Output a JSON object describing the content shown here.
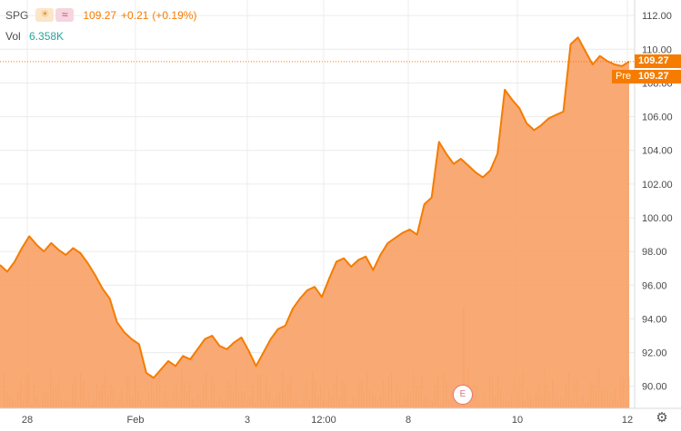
{
  "legend": {
    "symbol": "SPG",
    "price": "109.27",
    "change": "+0.21",
    "change_pct": "(+0.19%)",
    "vol_label": "Vol",
    "vol_value": "6.358K"
  },
  "price_tag": {
    "pre_label": "Pre",
    "value": "109.27",
    "last_value": "109.27"
  },
  "earnings_badge": "E",
  "colors": {
    "line": "#f57c00",
    "area": "#f8a064",
    "grid": "#ececec",
    "pill": "#f57c00"
  },
  "chart_data": {
    "type": "area",
    "title": "",
    "xlabel": "",
    "ylabel": "",
    "ylim": [
      88.8,
      112.6
    ],
    "x_ticks": [
      "28",
      "Feb",
      "3",
      "12:00",
      "8",
      "10",
      "12"
    ],
    "y_ticks": [
      "90.00",
      "92.00",
      "94.00",
      "96.00",
      "98.00",
      "100.00",
      "102.00",
      "104.00",
      "106.00",
      "108.00",
      "110.00",
      "112.00"
    ],
    "grid": true,
    "series": [
      {
        "values": [
          97.2,
          96.8,
          97.4,
          98.2,
          98.9,
          98.4,
          98.0,
          98.5,
          98.1,
          97.8,
          98.2,
          97.9,
          97.3,
          96.6,
          95.8,
          95.2,
          93.8,
          93.2,
          92.8,
          92.5,
          90.8,
          90.5,
          91.0,
          91.5,
          91.2,
          91.8,
          91.6,
          92.2,
          92.8,
          93.0,
          92.4,
          92.2,
          92.6,
          92.9,
          92.1,
          91.2,
          92.0,
          92.8,
          93.4,
          93.6,
          94.6,
          95.2,
          95.7,
          95.9,
          95.3,
          96.4,
          97.4,
          97.6,
          97.1,
          97.5,
          97.7,
          96.9,
          97.8,
          98.5,
          98.8,
          99.1,
          99.3,
          99.0,
          100.8,
          101.2,
          104.5,
          103.8,
          103.2,
          103.5,
          103.1,
          102.7,
          102.4,
          102.8,
          103.8,
          107.6,
          107.0,
          106.5,
          105.6,
          105.2,
          105.5,
          105.9,
          106.1,
          106.3,
          110.3,
          110.7,
          109.9,
          109.1,
          109.6,
          109.3,
          109.1,
          109.0,
          109.27
        ]
      }
    ]
  }
}
